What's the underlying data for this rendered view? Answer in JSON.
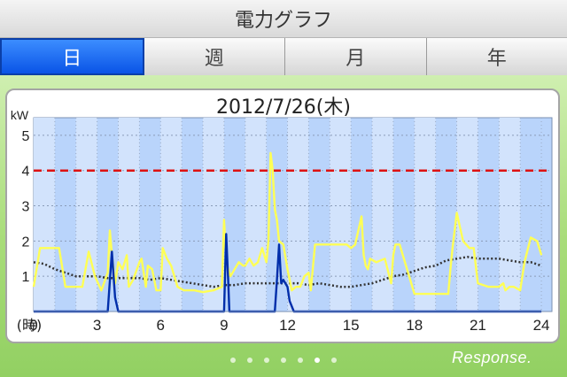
{
  "header": {
    "title": "電力グラフ"
  },
  "tabs": [
    {
      "label": "日",
      "active": true
    },
    {
      "label": "週",
      "active": false
    },
    {
      "label": "月",
      "active": false
    },
    {
      "label": "年",
      "active": false
    }
  ],
  "date_label": "2012/7/26(木)",
  "pager": {
    "count": 7,
    "active_index": 5
  },
  "watermark": "Response.",
  "colors": {
    "accent": "#0a54e6",
    "limit_line": "#dd1111",
    "usage": "#ffff55",
    "generation": "#002eaa",
    "average": "#333333"
  },
  "chart_data": {
    "type": "line",
    "ylabel": "kW",
    "ylim": [
      0,
      5.5
    ],
    "yticks": [
      1,
      2,
      3,
      4,
      5
    ],
    "xlabel": "(時)",
    "xlim": [
      0,
      24.5
    ],
    "xticks": [
      0,
      3,
      6,
      9,
      12,
      15,
      18,
      21,
      24
    ],
    "limit_line": 4.0,
    "series": [
      {
        "x": [
          0,
          0.3,
          0.6,
          1.2,
          1.5,
          2.3,
          2.6,
          2.9,
          3.2,
          3.5,
          3.6,
          3.7,
          3.85,
          4.0,
          4.2,
          4.4,
          4.5,
          4.7,
          5.0,
          5.1,
          5.3,
          5.4,
          5.6,
          5.8,
          6.0,
          6.1,
          6.3,
          6.5,
          6.8,
          7.1,
          7.6,
          8.0,
          8.5,
          8.9,
          9.0,
          9.1,
          9.2,
          9.3,
          9.5,
          9.7,
          9.9,
          10.0,
          10.2,
          10.4,
          10.6,
          10.8,
          10.9,
          11.0,
          11.1,
          11.2,
          11.3,
          11.4,
          11.5,
          11.6,
          11.8,
          12.0,
          12.2,
          12.4,
          12.6,
          12.8,
          13.0,
          13.1,
          13.3,
          13.5,
          13.8,
          14.2,
          14.5,
          14.8,
          15.0,
          15.2,
          15.5,
          15.6,
          15.7,
          15.8,
          15.9,
          16.2,
          16.6,
          16.9,
          17.0,
          17.1,
          17.3,
          18.0,
          19.0,
          19.6,
          19.7,
          19.8,
          20.0,
          20.3,
          20.6,
          20.8,
          21.0,
          21.5,
          22.0,
          22.2,
          22.3,
          22.5,
          22.7,
          23.0,
          23.2,
          23.5,
          23.8,
          24.0
        ],
        "values": [
          0.7,
          1.8,
          1.8,
          1.8,
          0.7,
          0.7,
          1.7,
          1.0,
          0.6,
          1.1,
          2.3,
          1.6,
          0.8,
          1.4,
          1.2,
          1.6,
          0.7,
          0.9,
          1.4,
          1.5,
          0.7,
          1.3,
          1.2,
          0.6,
          0.6,
          1.8,
          1.5,
          1.3,
          0.7,
          0.6,
          0.6,
          0.55,
          0.6,
          0.7,
          2.6,
          1.4,
          1.2,
          1.0,
          1.2,
          1.4,
          1.3,
          1.3,
          1.5,
          1.3,
          1.4,
          1.8,
          1.6,
          1.4,
          2.0,
          4.5,
          4.0,
          2.9,
          2.6,
          2.0,
          1.9,
          1.2,
          0.6,
          0.7,
          0.7,
          1.0,
          1.1,
          0.6,
          1.9,
          1.9,
          1.9,
          1.9,
          1.9,
          1.9,
          1.8,
          1.9,
          2.7,
          1.6,
          1.3,
          1.2,
          1.5,
          1.4,
          1.5,
          0.8,
          1.6,
          1.9,
          1.9,
          0.5,
          0.5,
          0.5,
          1.2,
          1.8,
          2.8,
          2.0,
          1.8,
          1.8,
          0.8,
          0.7,
          0.7,
          0.8,
          0.6,
          0.7,
          0.7,
          0.6,
          1.4,
          2.1,
          2.0,
          1.6
        ]
      },
      {
        "x": [
          0,
          3.3,
          3.5,
          3.7,
          3.85,
          4.0,
          8.9,
          9.0,
          9.1,
          9.2,
          9.25,
          11.4,
          11.5,
          11.6,
          11.7,
          11.8,
          12.0,
          12.1,
          12.3,
          24
        ],
        "values": [
          0,
          0,
          0,
          1.7,
          0.4,
          0,
          0,
          0,
          2.2,
          0.8,
          0,
          0,
          0.9,
          1.9,
          0.8,
          0.9,
          0.7,
          0.3,
          0,
          0
        ]
      },
      {
        "x": [
          0,
          0.5,
          1,
          1.5,
          2,
          2.5,
          3,
          3.5,
          4,
          4.5,
          5,
          5.5,
          6,
          6.5,
          7,
          7.5,
          8,
          8.5,
          9,
          9.5,
          10,
          10.5,
          11,
          11.5,
          12,
          12.5,
          13,
          13.5,
          14,
          14.5,
          15,
          15.5,
          16,
          16.5,
          17,
          17.5,
          18,
          18.5,
          19,
          19.5,
          20,
          20.5,
          21,
          21.5,
          22,
          22.5,
          23,
          23.5,
          24
        ],
        "values": [
          1.4,
          1.35,
          1.2,
          1.1,
          1.0,
          1.0,
          1.0,
          0.95,
          0.95,
          0.95,
          0.95,
          0.9,
          0.95,
          0.9,
          0.85,
          0.8,
          0.75,
          0.7,
          0.75,
          0.75,
          0.8,
          0.8,
          0.8,
          0.8,
          0.8,
          0.8,
          0.75,
          0.8,
          0.75,
          0.7,
          0.7,
          0.75,
          0.8,
          0.9,
          1.0,
          1.05,
          1.15,
          1.25,
          1.3,
          1.45,
          1.5,
          1.55,
          1.5,
          1.5,
          1.5,
          1.45,
          1.4,
          1.4,
          1.3
        ]
      }
    ]
  }
}
